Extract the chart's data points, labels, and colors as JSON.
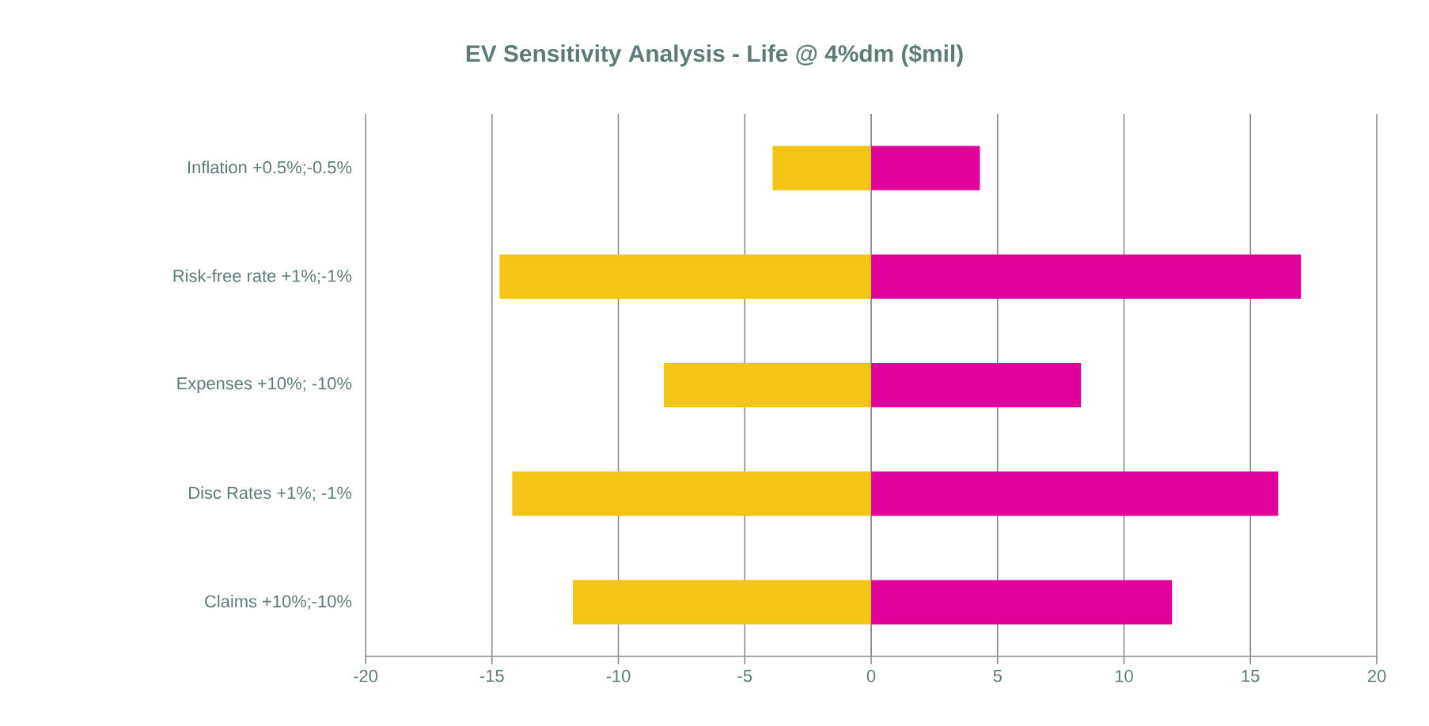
{
  "chart_data": {
    "type": "bar",
    "orientation": "horizontal",
    "title": "EV Sensitivity  Analysis  - Life  @ 4%dm ($mil)",
    "categories": [
      "Inflation +0.5%;-0.5%",
      "Risk-free rate +1%;-1%",
      "Expenses +10%; -10%",
      "Disc Rates +1%; -1%",
      "Claims +10%;-10%"
    ],
    "series": [
      {
        "color": "#f2c515",
        "values": [
          -3.9,
          -14.7,
          -8.2,
          -14.2,
          -11.8
        ]
      },
      {
        "color": "#e0009a",
        "values": [
          4.3,
          17.0,
          8.3,
          16.1,
          11.9
        ]
      }
    ],
    "xlim": [
      -20,
      20
    ],
    "xticks": [
      -20,
      -15,
      -10,
      -5,
      0,
      5,
      10,
      15,
      20
    ],
    "grid": "x",
    "stacked": true
  }
}
